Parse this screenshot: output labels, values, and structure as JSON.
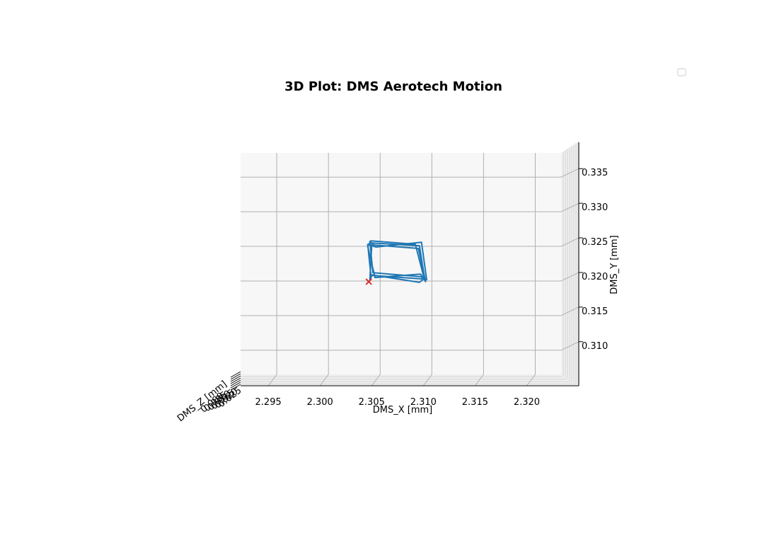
{
  "chart_data": {
    "type": "line",
    "title": "3D Plot: DMS Aerotech Motion",
    "xlabel": "DMS_X [mm]",
    "ylabel": "DMS_Y [mm]",
    "zlabel": "DMS_Z [mm]",
    "xlim": [
      2.2915,
      2.3225
    ],
    "ylim": [
      0.3065,
      0.3385
    ],
    "xticks": [
      2.295,
      2.3,
      2.305,
      2.31,
      2.315,
      2.32
    ],
    "xtick_labels": [
      "2.295",
      "2.300",
      "2.305",
      "2.310",
      "2.315",
      "2.320"
    ],
    "yticks": [
      0.31,
      0.315,
      0.32,
      0.325,
      0.33,
      0.335
    ],
    "ytick_labels": [
      "0.310",
      "0.315",
      "0.320",
      "0.325",
      "0.330",
      "0.335"
    ],
    "grid": true,
    "legend": "top-right (empty)",
    "series_color": "#1f77b4",
    "marker_color": "#d62728",
    "series": [
      {
        "x": [
          2.304,
          2.3042,
          2.3088,
          2.3093,
          2.3088,
          2.3041,
          2.3038,
          2.3046,
          2.309,
          2.3095,
          2.3091,
          2.3043,
          2.304,
          2.3044,
          2.3087,
          2.3094,
          2.3089,
          2.3045,
          2.3038,
          2.3041,
          2.3084,
          2.3092,
          2.309,
          2.3042,
          2.304
        ],
        "y": [
          0.3201,
          0.3255,
          0.3251,
          0.3204,
          0.3198,
          0.3209,
          0.3253,
          0.3249,
          0.3256,
          0.3202,
          0.3206,
          0.3212,
          0.3257,
          0.3252,
          0.3247,
          0.3199,
          0.321,
          0.3205,
          0.325,
          0.3258,
          0.3253,
          0.3207,
          0.3203,
          0.3208,
          0.3201
        ]
      }
    ],
    "start_marker": {
      "x": 2.3039,
      "y": 0.3199,
      "symbol": "x"
    }
  }
}
